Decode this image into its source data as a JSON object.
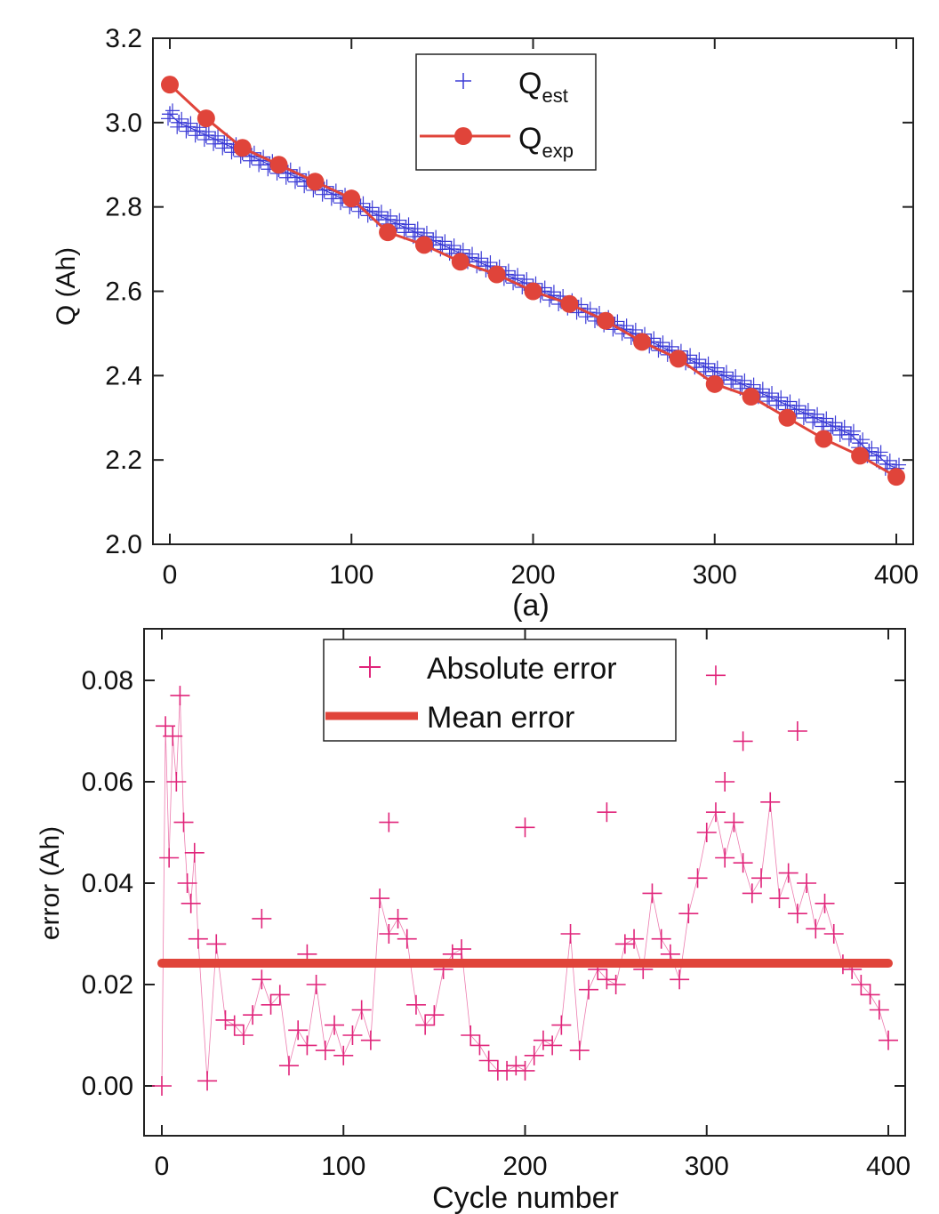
{
  "chart_data": [
    {
      "type": "line",
      "panel_label": "(a)",
      "xlabel": "",
      "ylabel": "Q (Ah)",
      "xlim": [
        -8,
        405
      ],
      "ylim": [
        2.0,
        3.2
      ],
      "xticks": [
        "0",
        "100",
        "200",
        "300",
        "400"
      ],
      "yticks": [
        "2.0",
        "2.2",
        "2.4",
        "2.6",
        "2.8",
        "3.0",
        "3.2"
      ],
      "legend_position": "top-center",
      "legend": [
        {
          "label": "Q",
          "subscript": "est",
          "marker": "plus",
          "color": "#3b3bd6"
        },
        {
          "label": "Q",
          "subscript": "exp",
          "marker": "circle-line",
          "color": "#e0443a"
        }
      ],
      "series": [
        {
          "name": "Qest",
          "style": "plus-markers",
          "color": "#3b3bd6",
          "x": [
            0,
            5,
            10,
            15,
            20,
            25,
            30,
            35,
            40,
            45,
            50,
            55,
            60,
            65,
            70,
            75,
            80,
            85,
            90,
            95,
            100,
            105,
            110,
            115,
            120,
            125,
            130,
            135,
            140,
            145,
            150,
            155,
            160,
            165,
            170,
            175,
            180,
            185,
            190,
            195,
            200,
            205,
            210,
            215,
            220,
            225,
            230,
            235,
            240,
            245,
            250,
            255,
            260,
            265,
            270,
            275,
            280,
            285,
            290,
            295,
            300,
            305,
            310,
            315,
            320,
            325,
            330,
            335,
            340,
            345,
            350,
            355,
            360,
            365,
            370,
            375,
            380,
            385,
            390,
            395,
            400
          ],
          "values": [
            3.02,
            3.0,
            2.99,
            2.98,
            2.97,
            2.96,
            2.95,
            2.94,
            2.93,
            2.92,
            2.91,
            2.9,
            2.89,
            2.88,
            2.87,
            2.86,
            2.85,
            2.84,
            2.83,
            2.82,
            2.81,
            2.8,
            2.79,
            2.78,
            2.77,
            2.76,
            2.75,
            2.74,
            2.73,
            2.72,
            2.71,
            2.7,
            2.69,
            2.68,
            2.67,
            2.66,
            2.65,
            2.64,
            2.63,
            2.62,
            2.61,
            2.6,
            2.59,
            2.58,
            2.57,
            2.56,
            2.55,
            2.54,
            2.53,
            2.52,
            2.51,
            2.5,
            2.49,
            2.48,
            2.47,
            2.46,
            2.45,
            2.44,
            2.43,
            2.42,
            2.41,
            2.4,
            2.39,
            2.38,
            2.37,
            2.36,
            2.35,
            2.34,
            2.33,
            2.32,
            2.31,
            2.3,
            2.29,
            2.28,
            2.27,
            2.26,
            2.24,
            2.22,
            2.21,
            2.19,
            2.18
          ]
        },
        {
          "name": "Qexp",
          "style": "line-circle",
          "color": "#e0443a",
          "x": [
            0,
            20,
            40,
            60,
            80,
            100,
            120,
            140,
            160,
            180,
            200,
            220,
            240,
            260,
            280,
            300,
            320,
            340,
            360,
            380,
            400
          ],
          "values": [
            3.09,
            3.01,
            2.94,
            2.9,
            2.86,
            2.82,
            2.74,
            2.71,
            2.67,
            2.64,
            2.6,
            2.57,
            2.53,
            2.48,
            2.44,
            2.38,
            2.35,
            2.3,
            2.25,
            2.21,
            2.16
          ]
        }
      ]
    },
    {
      "type": "scatter",
      "xlabel": "Cycle number",
      "ylabel": "error (Ah)",
      "xlim": [
        -10,
        410
      ],
      "ylim": [
        -0.01,
        0.09
      ],
      "xticks": [
        "0",
        "100",
        "200",
        "300",
        "400"
      ],
      "yticks": [
        "0.00",
        "0.02",
        "0.04",
        "0.06",
        "0.08"
      ],
      "legend_position": "top-center",
      "legend": [
        {
          "label": "Absolute error",
          "marker": "plus",
          "color": "#e0247a"
        },
        {
          "label": "Mean error",
          "marker": "thick-line",
          "color": "#e0443a"
        }
      ],
      "series": [
        {
          "name": "Absolute error",
          "style": "plus-markers",
          "color": "#e0247a",
          "x": [
            0,
            2,
            4,
            6,
            8,
            10,
            12,
            14,
            16,
            18,
            20,
            25,
            30,
            35,
            40,
            45,
            50,
            55,
            60,
            65,
            70,
            75,
            80,
            85,
            90,
            95,
            100,
            105,
            110,
            115,
            120,
            125,
            130,
            135,
            140,
            145,
            150,
            155,
            160,
            165,
            170,
            175,
            180,
            185,
            190,
            195,
            200,
            205,
            210,
            215,
            220,
            225,
            230,
            235,
            240,
            245,
            250,
            255,
            260,
            265,
            270,
            275,
            280,
            285,
            290,
            295,
            300,
            305,
            310,
            315,
            320,
            325,
            330,
            335,
            340,
            345,
            350,
            355,
            360,
            365,
            370,
            375,
            380,
            385,
            390,
            395,
            400,
            310,
            350,
            305,
            320,
            55,
            80,
            125,
            200,
            245
          ],
          "values": [
            0.0,
            0.071,
            0.045,
            0.069,
            0.06,
            0.077,
            0.052,
            0.04,
            0.036,
            0.046,
            0.029,
            0.001,
            0.028,
            0.013,
            0.012,
            0.01,
            0.014,
            0.021,
            0.016,
            0.018,
            0.004,
            0.011,
            0.008,
            0.02,
            0.007,
            0.012,
            0.006,
            0.01,
            0.015,
            0.009,
            0.037,
            0.03,
            0.033,
            0.029,
            0.016,
            0.012,
            0.014,
            0.023,
            0.026,
            0.027,
            0.01,
            0.008,
            0.005,
            0.003,
            0.003,
            0.004,
            0.003,
            0.006,
            0.009,
            0.008,
            0.012,
            0.03,
            0.007,
            0.019,
            0.023,
            0.021,
            0.02,
            0.028,
            0.029,
            0.023,
            0.038,
            0.029,
            0.026,
            0.021,
            0.034,
            0.041,
            0.05,
            0.054,
            0.045,
            0.052,
            0.044,
            0.038,
            0.041,
            0.056,
            0.037,
            0.042,
            0.034,
            0.04,
            0.031,
            0.036,
            0.03,
            0.024,
            0.023,
            0.02,
            0.018,
            0.015,
            0.009,
            0.06,
            0.07,
            0.081,
            0.068,
            0.033,
            0.026,
            0.052,
            0.051,
            0.054
          ]
        },
        {
          "name": "Mean error",
          "style": "thick-line",
          "color": "#e0443a",
          "x": [
            0,
            400
          ],
          "values": [
            0.0242,
            0.0242
          ]
        }
      ]
    }
  ]
}
